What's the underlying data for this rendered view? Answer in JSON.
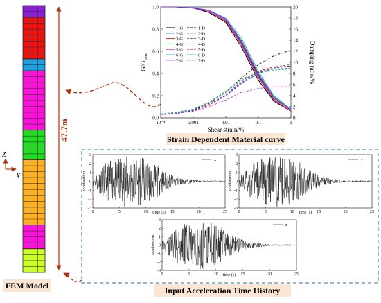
{
  "fem_model": {
    "caption": "FEM Model",
    "height_label": "47.7m",
    "axis_z": "Z",
    "axis_x": "X",
    "layer_colors": [
      "#8a1fd6",
      "#ee1111",
      "#1e9fe0",
      "#ff11dd",
      "#22dd22",
      "#ffb020",
      "#ff11dd",
      "#ccff22"
    ],
    "layer_rows": [
      2,
      7,
      2,
      10,
      5,
      11,
      4,
      4
    ]
  },
  "material_curve": {
    "caption": "Strain Dependent Material curve",
    "chart_data": {
      "type": "line",
      "xlabel": "Shear strain/%",
      "ylabel_left": "G/Gmax",
      "ylabel_right": "Damping ratio/%",
      "xscale": "log",
      "xlim": [
        0.0001,
        1
      ],
      "ylim_left": [
        0,
        1
      ],
      "ylim_right": [
        0,
        20
      ],
      "x_ticks": [
        "10⁻⁴",
        "0.001",
        "0.01",
        "0.1",
        "1"
      ],
      "y_ticks_left": [
        "0.0",
        "0.2",
        "0.4",
        "0.6",
        "0.8",
        "1.0"
      ],
      "y_ticks_right": [
        "0",
        "2",
        "4",
        "6",
        "8",
        "10",
        "12",
        "14",
        "16",
        "18",
        "20"
      ],
      "x": [
        0.0001,
        0.0003,
        0.001,
        0.003,
        0.01,
        0.03,
        0.1,
        0.3,
        1
      ],
      "g_series": [
        {
          "name": "1-G",
          "color": "#000000",
          "values": [
            1.0,
            1.0,
            0.99,
            0.95,
            0.86,
            0.64,
            0.34,
            0.15,
            0.06
          ]
        },
        {
          "name": "2-G",
          "color": "#1f3fd0",
          "values": [
            1.0,
            1.0,
            0.99,
            0.96,
            0.88,
            0.68,
            0.38,
            0.18,
            0.07
          ]
        },
        {
          "name": "3-G",
          "color": "#c0392b",
          "values": [
            1.0,
            1.0,
            0.99,
            0.96,
            0.87,
            0.66,
            0.36,
            0.16,
            0.06
          ]
        },
        {
          "name": "4-G",
          "color": "#2e9e2e",
          "values": [
            1.0,
            1.0,
            0.99,
            0.97,
            0.89,
            0.7,
            0.4,
            0.19,
            0.08
          ]
        },
        {
          "name": "5-G",
          "color": "#c030c0",
          "values": [
            1.0,
            1.0,
            0.99,
            0.96,
            0.88,
            0.67,
            0.37,
            0.17,
            0.07
          ]
        },
        {
          "name": "6-G",
          "color": "#40b0e0",
          "values": [
            1.0,
            1.0,
            0.995,
            0.97,
            0.9,
            0.72,
            0.42,
            0.2,
            0.08
          ]
        },
        {
          "name": "7-G",
          "color": "#8a1fd6",
          "values": [
            1.0,
            1.0,
            0.99,
            0.97,
            0.89,
            0.69,
            0.39,
            0.18,
            0.07
          ]
        }
      ],
      "d_series": [
        {
          "name": "1-D",
          "color": "#000000",
          "values": [
            0.6,
            0.8,
            1.4,
            2.6,
            4.6,
            7.2,
            9.6,
            11.2,
            12.2
          ]
        },
        {
          "name": "2-D",
          "color": "#1f3fd0",
          "values": [
            0.6,
            0.8,
            1.3,
            2.3,
            4.0,
            6.2,
            8.0,
            9.0,
            9.4
          ]
        },
        {
          "name": "3-D",
          "color": "#c0392b",
          "values": [
            0.6,
            0.8,
            1.3,
            2.4,
            4.2,
            6.6,
            8.4,
            9.2,
            9.6
          ]
        },
        {
          "name": "4-D",
          "color": "#2e9e2e",
          "values": [
            0.7,
            1.0,
            1.6,
            2.8,
            4.8,
            7.0,
            8.2,
            8.8,
            9.0
          ]
        },
        {
          "name": "5-D",
          "color": "#c030c0",
          "values": [
            0.6,
            0.8,
            1.2,
            2.0,
            3.2,
            4.6,
            5.3,
            5.6,
            5.6
          ]
        },
        {
          "name": "6-D",
          "color": "#40b0e0",
          "values": [
            0.7,
            0.9,
            1.5,
            2.7,
            4.6,
            6.8,
            8.0,
            8.6,
            8.8
          ]
        },
        {
          "name": "7-D",
          "color": "#8a1fd6",
          "values": [
            0.6,
            0.8,
            1.3,
            2.3,
            4.1,
            6.4,
            8.2,
            9.0,
            9.3
          ]
        }
      ]
    }
  },
  "acceleration": {
    "caption": "Input Acceleration Time History",
    "panels": [
      {
        "key": "x",
        "legend": "x",
        "ylabel": "acceleration",
        "xlabel": "time (s)",
        "xlim": [
          0,
          25
        ],
        "ylim": [
          -3,
          3
        ],
        "x_ticks": [
          "0",
          "5",
          "10",
          "15",
          "20",
          "25"
        ],
        "y_ticks": [
          "3",
          "2",
          "1",
          "0",
          "-1",
          "-2",
          "-3"
        ]
      },
      {
        "key": "y",
        "legend": "y",
        "ylabel": "acceleration",
        "xlabel": "time (s)",
        "xlim": [
          0,
          25
        ],
        "ylim": [
          -3,
          3
        ],
        "x_ticks": [
          "0",
          "5",
          "10",
          "15",
          "20",
          "25"
        ],
        "y_ticks": [
          "3",
          "2",
          "1",
          "0",
          "-1",
          "-2",
          "-3"
        ]
      },
      {
        "key": "z",
        "legend": "z",
        "ylabel": "acceleration",
        "xlabel": "time (s)",
        "xlim": [
          0,
          25
        ],
        "ylim": [
          -3,
          3
        ],
        "x_ticks": [
          "0",
          "5",
          "10",
          "15",
          "20",
          "25"
        ],
        "y_ticks": [
          "3",
          "2",
          "1",
          "0",
          "-1",
          "-2",
          "-3"
        ]
      }
    ]
  }
}
